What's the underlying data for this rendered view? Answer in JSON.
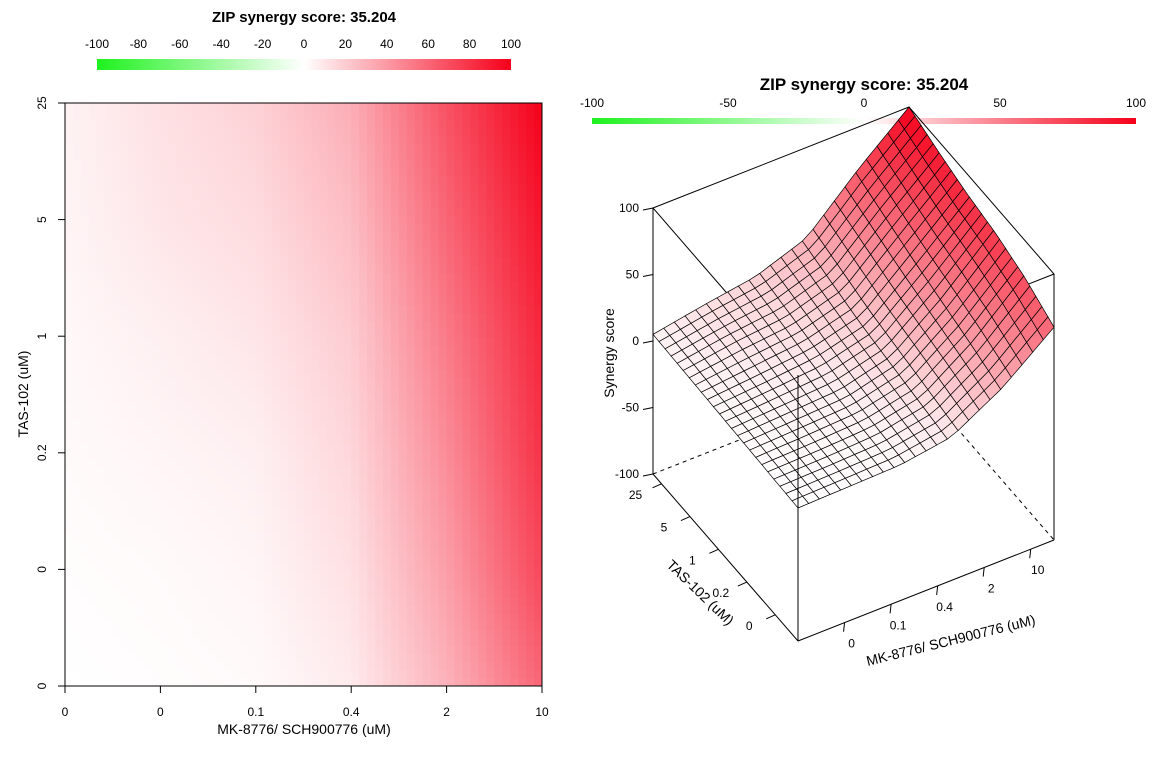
{
  "chart_data": [
    {
      "type": "heatmap",
      "title": "ZIP synergy score: 35.204",
      "xlabel": "MK-8776/ SCH900776 (uM)",
      "ylabel": "TAS-102 (uM)",
      "x_ticks": [
        "0",
        "0",
        "0.1",
        "0.4",
        "2",
        "10"
      ],
      "y_ticks": [
        "0",
        "0",
        "0.2",
        "1",
        "5",
        "25"
      ],
      "colorbar_ticks": [
        "-100",
        "-80",
        "-60",
        "-40",
        "-20",
        "0",
        "20",
        "40",
        "60",
        "80",
        "100"
      ],
      "colorbar_range": [
        -100,
        100
      ],
      "colors": {
        "low": "#1EF21E",
        "mid": "#FFFFFF",
        "high": "#F5001A"
      },
      "grid_x": [
        "0",
        "0",
        "0.1",
        "0.4",
        "2",
        "10"
      ],
      "grid_y": [
        "0",
        "0",
        "0.2",
        "1",
        "5",
        "25"
      ],
      "z": [
        [
          0,
          1,
          2,
          8,
          30,
          60
        ],
        [
          1,
          2,
          4,
          12,
          38,
          72
        ],
        [
          2,
          4,
          6,
          16,
          45,
          80
        ],
        [
          3,
          6,
          10,
          20,
          52,
          85
        ],
        [
          4,
          10,
          14,
          26,
          60,
          92
        ],
        [
          5,
          12,
          18,
          32,
          68,
          100
        ]
      ]
    },
    {
      "type": "surface",
      "title": "ZIP synergy score: 35.204",
      "xlabel": "MK-8776/ SCH900776 (uM)",
      "ylabel": "TAS-102 (uM)",
      "zlabel": "Synergy score",
      "x_ticks": [
        "0",
        "0.1",
        "0.4",
        "2",
        "10"
      ],
      "y_ticks": [
        "0",
        "0.2",
        "1",
        "5",
        "25"
      ],
      "z_ticks": [
        "100",
        "50",
        "0",
        "-50",
        "-100"
      ],
      "zlim": [
        -100,
        100
      ],
      "colorbar_ticks": [
        "-100",
        "-50",
        "0",
        "50",
        "100"
      ],
      "colorbar_range": [
        -100,
        100
      ]
    }
  ]
}
